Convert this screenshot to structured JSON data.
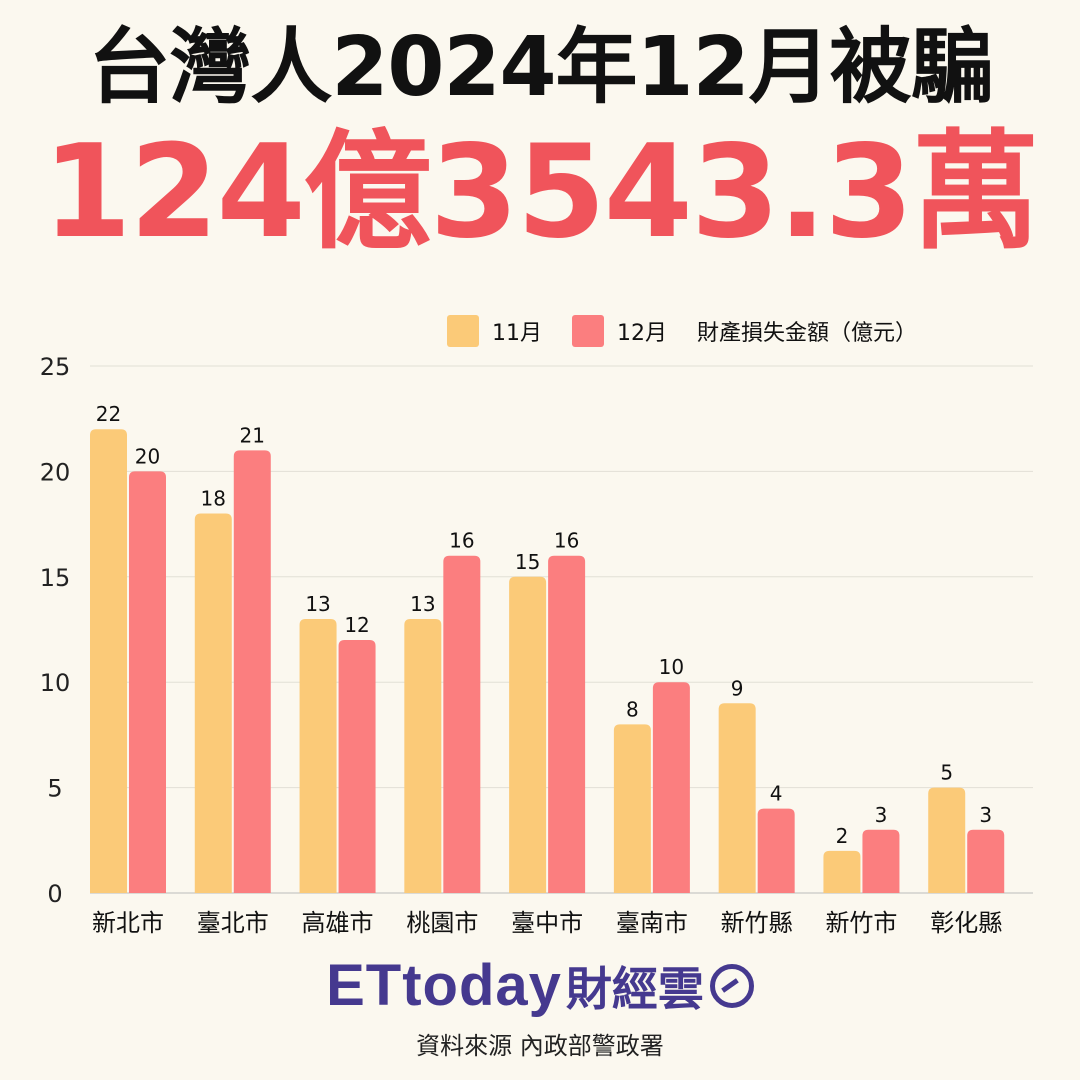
{
  "header": {
    "title": "台灣人2024年12月被騙",
    "amount": "124億3543.3萬"
  },
  "footer": {
    "brand": "ETtoday",
    "brand_sub": "財經雲",
    "source": "資料來源 內政部警政署"
  },
  "colors": {
    "nov": "#fbca78",
    "dec": "#fb7e7f",
    "amount": "#f0545b",
    "brand": "#45398f"
  },
  "chart_data": {
    "type": "bar",
    "title": "",
    "legend_title": "財產損失金額（億元）",
    "legend_position": "top-right",
    "grid": true,
    "ylim": [
      0,
      25
    ],
    "yticks": [
      0,
      5,
      10,
      15,
      20,
      25
    ],
    "categories": [
      "新北市",
      "臺北市",
      "高雄市",
      "桃園市",
      "臺中市",
      "臺南市",
      "新竹縣",
      "新竹市",
      "彰化縣"
    ],
    "series": [
      {
        "name": "11月",
        "values": [
          22,
          18,
          13,
          13,
          15,
          8,
          9,
          2,
          5
        ]
      },
      {
        "name": "12月",
        "values": [
          20,
          21,
          12,
          16,
          16,
          10,
          4,
          3,
          3
        ]
      }
    ]
  }
}
